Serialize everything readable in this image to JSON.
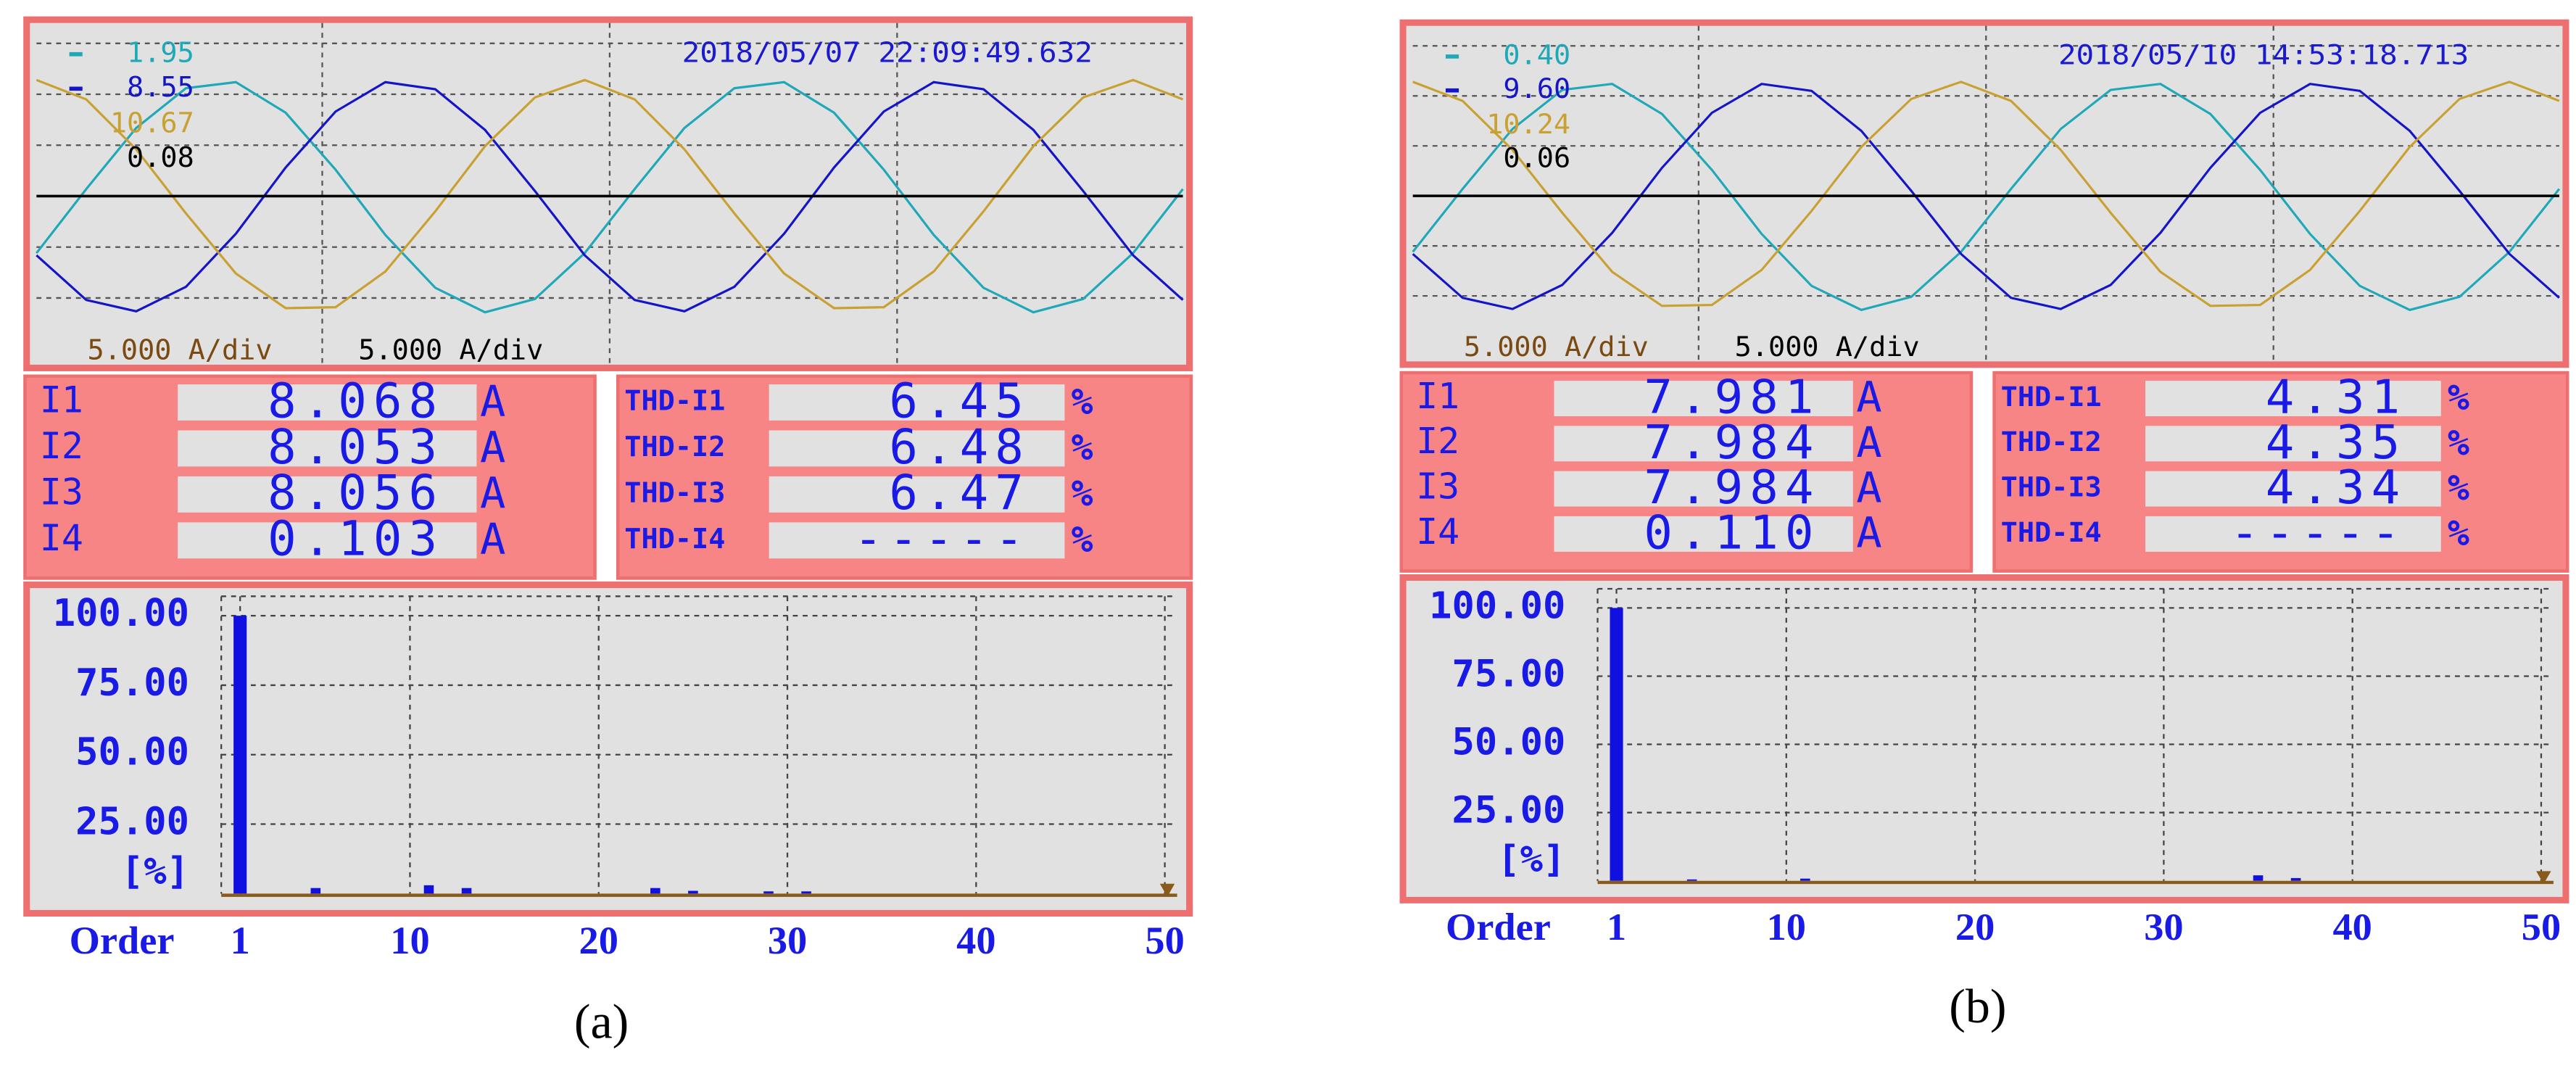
{
  "panels": [
    {
      "label": "(a)",
      "timestamp": "2018/05/07 22:09:49.632",
      "waveform": {
        "type": "line",
        "ylim": [
          -13,
          17
        ],
        "scales": [
          "5.000 A/div",
          "5.000 A/div"
        ],
        "series": [
          {
            "name": "1.95",
            "color": "#1fa8b8",
            "values": [
              -5.6,
              0.7,
              6.7,
              10.6,
              11.2,
              8.2,
              2.6,
              -3.8,
              -9.0,
              -11.4,
              -10.1,
              -5.6,
              0.7,
              6.7,
              10.6,
              11.2,
              8.2,
              2.6,
              -3.8,
              -9.0,
              -11.4,
              -10.1,
              -5.6,
              0.7
            ]
          },
          {
            "name": "8.55",
            "color": "#1515c8",
            "values": [
              -5.8,
              -10.2,
              -11.3,
              -8.9,
              -3.7,
              2.8,
              8.3,
              11.2,
              10.5,
              6.5,
              0.5,
              -5.8,
              -10.2,
              -11.3,
              -8.9,
              -3.7,
              2.8,
              8.3,
              11.2,
              10.5,
              6.5,
              0.5,
              -5.8,
              -10.2
            ]
          },
          {
            "name": "10.67",
            "color": "#c9a032",
            "values": [
              11.4,
              9.5,
              4.6,
              -1.7,
              -7.6,
              -11.0,
              -10.9,
              -7.4,
              -1.5,
              4.9,
              9.7,
              11.4,
              9.5,
              4.6,
              -1.7,
              -7.6,
              -11.0,
              -10.9,
              -7.4,
              -1.5,
              4.9,
              9.7,
              11.4,
              9.5
            ]
          },
          {
            "name": "0.08",
            "color": "#000000",
            "values": [
              0,
              0,
              0,
              0,
              0,
              0,
              0,
              0,
              0,
              0,
              0,
              0,
              0,
              0,
              0,
              0,
              0,
              0,
              0,
              0,
              0,
              0,
              0,
              0
            ]
          }
        ]
      },
      "currents": [
        {
          "name": "I1",
          "value": "8.068",
          "unit": "A"
        },
        {
          "name": "I2",
          "value": "8.053",
          "unit": "A"
        },
        {
          "name": "I3",
          "value": "8.056",
          "unit": "A"
        },
        {
          "name": "I4",
          "value": "0.103",
          "unit": "A"
        }
      ],
      "thd": [
        {
          "name": "THD-I1",
          "value": "6.45",
          "unit": "%"
        },
        {
          "name": "THD-I2",
          "value": "6.48",
          "unit": "%"
        },
        {
          "name": "THD-I3",
          "value": "6.47",
          "unit": "%"
        },
        {
          "name": "THD-I4",
          "value": "-----",
          "unit": "%"
        }
      ],
      "harmonics": {
        "type": "bar",
        "color": "#1010e0",
        "x_label": "Order",
        "y_label": "[%]",
        "xlim": [
          0,
          51
        ],
        "ylim": [
          0,
          107
        ],
        "xticks": [
          1,
          10,
          20,
          30,
          40,
          50
        ],
        "yticks": [
          {
            "value": 25,
            "label": "25.00"
          },
          {
            "value": 50,
            "label": "50.00"
          },
          {
            "value": 75,
            "label": "75.00"
          },
          {
            "value": 100,
            "label": "100.00"
          }
        ],
        "grid": true,
        "x": [
          1,
          2,
          3,
          4,
          5,
          6,
          7,
          8,
          9,
          10,
          11,
          12,
          13,
          14,
          15,
          16,
          17,
          18,
          19,
          20,
          21,
          22,
          23,
          24,
          25,
          26,
          27,
          28,
          29,
          30,
          31,
          32,
          33,
          34,
          35,
          36,
          37,
          38,
          39,
          40,
          41,
          42,
          43,
          44,
          45,
          46,
          47,
          48,
          49,
          50
        ],
        "values": [
          100,
          0,
          0,
          0,
          2,
          0,
          0,
          0,
          0,
          0,
          3,
          0,
          2,
          0,
          0,
          0,
          0,
          0,
          0,
          0,
          0,
          0,
          2,
          0,
          1,
          0,
          0,
          0,
          0.8,
          0,
          0.8,
          0,
          0,
          0,
          0,
          0,
          0,
          0,
          0,
          0,
          0,
          0,
          0,
          0,
          0,
          0,
          0,
          0,
          0,
          0
        ]
      }
    },
    {
      "label": "(b)",
      "timestamp": "2018/05/10 14:53:18.713",
      "waveform": {
        "type": "line",
        "ylim": [
          -13,
          17
        ],
        "scales": [
          "5.000 A/div",
          "5.000 A/div"
        ],
        "series": [
          {
            "name": "0.40",
            "color": "#1fa8b8",
            "values": [
              -5.6,
              0.7,
              6.7,
              10.6,
              11.2,
              8.2,
              2.6,
              -3.8,
              -9.0,
              -11.4,
              -10.1,
              -5.6,
              0.7,
              6.7,
              10.6,
              11.2,
              8.2,
              2.6,
              -3.8,
              -9.0,
              -11.4,
              -10.1,
              -5.6,
              0.7
            ]
          },
          {
            "name": "9.60",
            "color": "#1515c8",
            "values": [
              -5.8,
              -10.2,
              -11.3,
              -8.9,
              -3.7,
              2.8,
              8.3,
              11.2,
              10.5,
              6.5,
              0.5,
              -5.8,
              -10.2,
              -11.3,
              -8.9,
              -3.7,
              2.8,
              8.3,
              11.2,
              10.5,
              6.5,
              0.5,
              -5.8,
              -10.2
            ]
          },
          {
            "name": "10.24",
            "color": "#c9a032",
            "values": [
              11.4,
              9.5,
              4.6,
              -1.7,
              -7.6,
              -11.0,
              -10.9,
              -7.4,
              -1.5,
              4.9,
              9.7,
              11.4,
              9.5,
              4.6,
              -1.7,
              -7.6,
              -11.0,
              -10.9,
              -7.4,
              -1.5,
              4.9,
              9.7,
              11.4,
              9.5
            ]
          },
          {
            "name": "0.06",
            "color": "#000000",
            "values": [
              0,
              0,
              0,
              0,
              0,
              0,
              0,
              0,
              0,
              0,
              0,
              0,
              0,
              0,
              0,
              0,
              0,
              0,
              0,
              0,
              0,
              0,
              0,
              0
            ]
          }
        ]
      },
      "currents": [
        {
          "name": "I1",
          "value": "7.981",
          "unit": "A"
        },
        {
          "name": "I2",
          "value": "7.984",
          "unit": "A"
        },
        {
          "name": "I3",
          "value": "7.984",
          "unit": "A"
        },
        {
          "name": "I4",
          "value": "0.110",
          "unit": "A"
        }
      ],
      "thd": [
        {
          "name": "THD-I1",
          "value": "4.31",
          "unit": "%"
        },
        {
          "name": "THD-I2",
          "value": "4.35",
          "unit": "%"
        },
        {
          "name": "THD-I3",
          "value": "4.34",
          "unit": "%"
        },
        {
          "name": "THD-I4",
          "value": "-----",
          "unit": "%"
        }
      ],
      "harmonics": {
        "type": "bar",
        "color": "#1010e0",
        "x_label": "Order",
        "y_label": "[%]",
        "xlim": [
          0,
          51
        ],
        "ylim": [
          0,
          107
        ],
        "xticks": [
          1,
          10,
          20,
          30,
          40,
          50
        ],
        "yticks": [
          {
            "value": 25,
            "label": "25.00"
          },
          {
            "value": 50,
            "label": "50.00"
          },
          {
            "value": 75,
            "label": "75.00"
          },
          {
            "value": 100,
            "label": "100.00"
          }
        ],
        "grid": true,
        "x": [
          1,
          2,
          3,
          4,
          5,
          6,
          7,
          8,
          9,
          10,
          11,
          12,
          13,
          14,
          15,
          16,
          17,
          18,
          19,
          20,
          21,
          22,
          23,
          24,
          25,
          26,
          27,
          28,
          29,
          30,
          31,
          32,
          33,
          34,
          35,
          36,
          37,
          38,
          39,
          40,
          41,
          42,
          43,
          44,
          45,
          46,
          47,
          48,
          49,
          50
        ],
        "values": [
          100,
          0,
          0,
          0,
          0.5,
          0,
          0,
          0,
          0,
          0,
          0.8,
          0,
          0,
          0,
          0,
          0,
          0,
          0,
          0,
          0,
          0,
          0,
          0,
          0,
          0,
          0,
          0,
          0,
          0,
          0,
          0,
          0,
          0,
          0,
          2,
          0,
          1,
          0,
          0,
          0,
          0,
          0,
          0,
          0,
          0,
          0,
          0,
          0,
          0,
          0
        ]
      }
    }
  ]
}
